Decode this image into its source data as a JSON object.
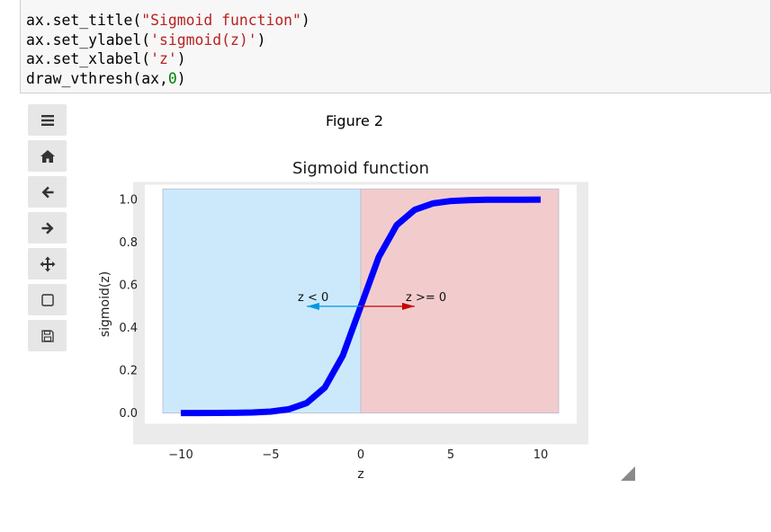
{
  "code_cell": {
    "lines": [
      {
        "pre": "ax.set_title(",
        "str": "\"Sigmoid function\"",
        "post": ")"
      },
      {
        "pre": "ax.set_ylabel(",
        "str": "'sigmoid(z)'",
        "post": ")"
      },
      {
        "pre": "ax.set_xlabel(",
        "str": "'z'",
        "post": ")"
      },
      {
        "pre": "draw_vthresh(ax,",
        "num": "0",
        "post": ")"
      }
    ]
  },
  "figure": {
    "title": "Figure 2"
  },
  "toolbar": {
    "buttons": [
      {
        "name": "menu-button",
        "icon": "hamburger-icon"
      },
      {
        "name": "home-button",
        "icon": "home-icon"
      },
      {
        "name": "back-button",
        "icon": "arrow-left-icon"
      },
      {
        "name": "forward-button",
        "icon": "arrow-right-icon"
      },
      {
        "name": "pan-button",
        "icon": "move-icon"
      },
      {
        "name": "zoom-button",
        "icon": "square-icon"
      },
      {
        "name": "save-button",
        "icon": "floppy-disk-icon"
      }
    ]
  },
  "chart_data": {
    "type": "line",
    "title": "Sigmoid function",
    "xlabel": "z",
    "ylabel": "sigmoid(z)",
    "xlim": [
      -12,
      12
    ],
    "ylim": [
      -0.05,
      1.07
    ],
    "xticks": [
      -10,
      -5,
      0,
      5,
      10
    ],
    "xtick_labels": [
      "−10",
      "−5",
      "0",
      "5",
      "10"
    ],
    "yticks": [
      0.0,
      0.2,
      0.4,
      0.6,
      0.8,
      1.0
    ],
    "ytick_labels": [
      "0.0",
      "0.2",
      "0.4",
      "0.6",
      "0.8",
      "1.0"
    ],
    "grid": false,
    "series": [
      {
        "color": "#0000ff",
        "x": [
          -10,
          -9,
          -8,
          -7,
          -6,
          -5,
          -4,
          -3,
          -2,
          -1,
          0,
          1,
          2,
          3,
          4,
          5,
          6,
          7,
          8,
          9,
          10
        ],
        "y": [
          4.54e-05,
          0.0001234,
          0.0003354,
          0.0009111,
          0.0024726,
          0.0066929,
          0.0179862,
          0.0474259,
          0.1192029,
          0.2689414,
          0.5,
          0.7310586,
          0.8807971,
          0.9525741,
          0.9820138,
          0.9933071,
          0.9975274,
          0.9990889,
          0.9996646,
          0.9998766,
          0.9999546
        ]
      }
    ],
    "regions": [
      {
        "x": [
          -11,
          0
        ],
        "y": [
          0,
          1.05
        ],
        "color": "#cce9fb"
      },
      {
        "x": [
          0,
          11
        ],
        "y": [
          0,
          1.05
        ],
        "color": "#f2cccd"
      }
    ],
    "annotations": [
      {
        "text": "z < 0",
        "x": -3,
        "y": 0.5,
        "text_x": -3.5,
        "text_y": 0.55,
        "color": "#0096e6"
      },
      {
        "text": "z >= 0",
        "x": 3,
        "y": 0.5,
        "text_x": 2.5,
        "text_y": 0.55,
        "color": "#c80000"
      }
    ]
  }
}
